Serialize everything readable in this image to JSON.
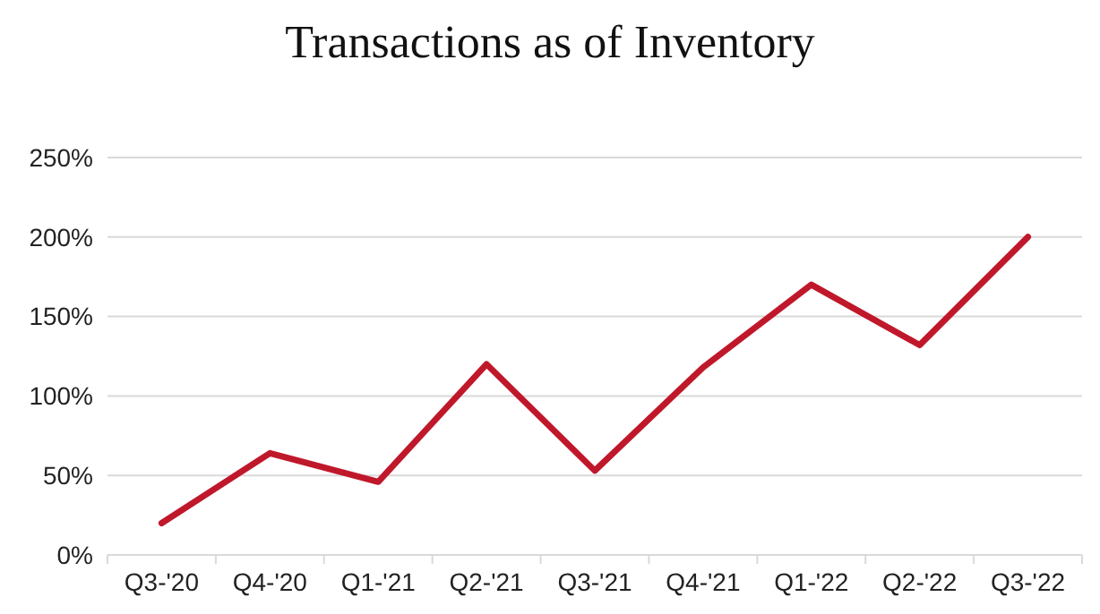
{
  "chart_data": {
    "type": "line",
    "title": "Transactions as of Inventory",
    "categories": [
      "Q3-'20",
      "Q4-'20",
      "Q1-'21",
      "Q2-'21",
      "Q3-'21",
      "Q4-'21",
      "Q1-'22",
      "Q2-'22",
      "Q3-'22"
    ],
    "series": [
      {
        "color": "#c0182b",
        "values": [
          20,
          64,
          46,
          120,
          53,
          118,
          170,
          132,
          200
        ]
      }
    ],
    "ylim": [
      0,
      250
    ],
    "yticks": [
      {
        "value": 0,
        "label": "0%"
      },
      {
        "value": 50,
        "label": "50%"
      },
      {
        "value": 100,
        "label": "100%"
      },
      {
        "value": 150,
        "label": "150%"
      },
      {
        "value": 200,
        "label": "200%"
      },
      {
        "value": 250,
        "label": "250%"
      }
    ],
    "grid": "y",
    "marker": "none",
    "line_style": "solid"
  }
}
